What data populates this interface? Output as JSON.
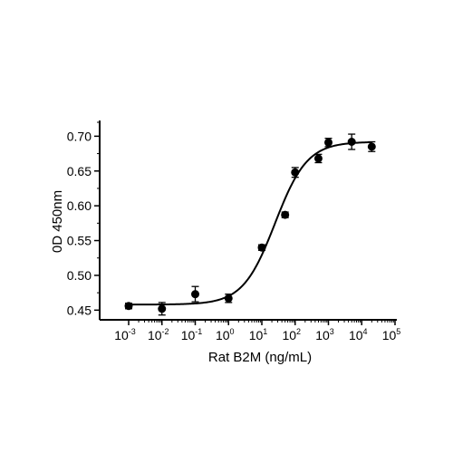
{
  "chart_data": {
    "type": "scatter",
    "title": "",
    "xlabel": "Rat B2M (ng/mL)",
    "ylabel": "0D 450nm",
    "x_scale": "log",
    "xlim": [
      0.001,
      100000
    ],
    "ylim": [
      0.44,
      0.72
    ],
    "x_ticks": [
      {
        "base": "10",
        "exp": "-3",
        "value": 0.001
      },
      {
        "base": "10",
        "exp": "-2",
        "value": 0.01
      },
      {
        "base": "10",
        "exp": "-1",
        "value": 0.1
      },
      {
        "base": "10",
        "exp": "0",
        "value": 1
      },
      {
        "base": "10",
        "exp": "1",
        "value": 10
      },
      {
        "base": "10",
        "exp": "2",
        "value": 100
      },
      {
        "base": "10",
        "exp": "3",
        "value": 1000
      },
      {
        "base": "10",
        "exp": "4",
        "value": 10000
      },
      {
        "base": "10",
        "exp": "5",
        "value": 100000
      }
    ],
    "y_ticks": [
      {
        "label": "0.45",
        "value": 0.45
      },
      {
        "label": "0.50",
        "value": 0.5
      },
      {
        "label": "0.55",
        "value": 0.55
      },
      {
        "label": "0.60",
        "value": 0.6
      },
      {
        "label": "0.65",
        "value": 0.65
      },
      {
        "label": "0.70",
        "value": 0.7
      }
    ],
    "grid": false,
    "legend": "none",
    "points": [
      {
        "x": 0.001,
        "y": 0.456,
        "err": 0.004
      },
      {
        "x": 0.01,
        "y": 0.452,
        "err": 0.009
      },
      {
        "x": 0.1,
        "y": 0.473,
        "err": 0.011
      },
      {
        "x": 1,
        "y": 0.467,
        "err": 0.006
      },
      {
        "x": 10,
        "y": 0.54,
        "err": 0.004
      },
      {
        "x": 50,
        "y": 0.587,
        "err": 0.004
      },
      {
        "x": 100,
        "y": 0.648,
        "err": 0.007
      },
      {
        "x": 500,
        "y": 0.668,
        "err": 0.006
      },
      {
        "x": 1000,
        "y": 0.691,
        "err": 0.006
      },
      {
        "x": 5000,
        "y": 0.692,
        "err": 0.011
      },
      {
        "x": 20000,
        "y": 0.685,
        "err": 0.007
      }
    ],
    "fit_curve": {
      "model": "4PL",
      "bottom": 0.458,
      "top": 0.692,
      "ec50": 25,
      "hill": 0.9
    },
    "colors": {
      "marker": "#000000",
      "line": "#000000"
    }
  }
}
